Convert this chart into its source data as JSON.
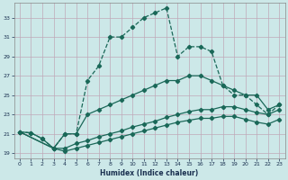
{
  "xlabel": "Humidex (Indice chaleur)",
  "bg_color": "#cce8e8",
  "grid_color": "#c0a8b8",
  "line_color": "#1a6858",
  "xlim": [
    -0.5,
    23.5
  ],
  "ylim": [
    18.5,
    34.5
  ],
  "xticks": [
    0,
    1,
    2,
    3,
    4,
    5,
    6,
    7,
    8,
    9,
    10,
    11,
    12,
    13,
    14,
    15,
    16,
    17,
    18,
    19,
    20,
    21,
    22,
    23
  ],
  "yticks": [
    19,
    21,
    23,
    25,
    27,
    29,
    31,
    33
  ],
  "line1_x": [
    0,
    1,
    2,
    3,
    4,
    5,
    6,
    7,
    8,
    9,
    10,
    11,
    12,
    13,
    14,
    15,
    16,
    17,
    18,
    19,
    20,
    21,
    22,
    23
  ],
  "line1_y": [
    21.2,
    21.1,
    20.5,
    19.5,
    21.0,
    21.0,
    26.5,
    28.0,
    31.0,
    31.0,
    32.0,
    33.0,
    33.5,
    34.0,
    29.0,
    30.0,
    30.0,
    29.5,
    26.0,
    25.0,
    25.0,
    24.0,
    23.0,
    24.0
  ],
  "line2_x": [
    0,
    1,
    2,
    3,
    4,
    5,
    6,
    7,
    8,
    9,
    10,
    11,
    12,
    13,
    14,
    15,
    16,
    17,
    18,
    19,
    20,
    21,
    22,
    23
  ],
  "line2_y": [
    21.2,
    21.1,
    20.5,
    19.5,
    21.0,
    21.0,
    23.0,
    23.5,
    24.0,
    24.5,
    25.0,
    25.5,
    26.0,
    26.5,
    26.5,
    27.0,
    27.0,
    26.5,
    26.0,
    25.5,
    25.0,
    25.0,
    23.5,
    24.0
  ],
  "line3_x": [
    0,
    3,
    4,
    5,
    6,
    7,
    8,
    9,
    10,
    11,
    12,
    13,
    14,
    15,
    16,
    17,
    18,
    19,
    20,
    21,
    22,
    23
  ],
  "line3_y": [
    21.2,
    19.5,
    19.5,
    20.0,
    20.3,
    20.7,
    21.0,
    21.3,
    21.7,
    22.0,
    22.3,
    22.7,
    23.0,
    23.3,
    23.5,
    23.5,
    23.8,
    23.8,
    23.5,
    23.2,
    23.0,
    23.5
  ],
  "line4_x": [
    0,
    3,
    4,
    5,
    6,
    7,
    8,
    9,
    10,
    11,
    12,
    13,
    14,
    15,
    16,
    17,
    18,
    19,
    20,
    21,
    22,
    23
  ],
  "line4_y": [
    21.2,
    19.5,
    19.2,
    19.5,
    19.8,
    20.1,
    20.4,
    20.7,
    21.0,
    21.3,
    21.6,
    21.9,
    22.2,
    22.4,
    22.6,
    22.6,
    22.8,
    22.8,
    22.5,
    22.2,
    22.0,
    22.5
  ]
}
